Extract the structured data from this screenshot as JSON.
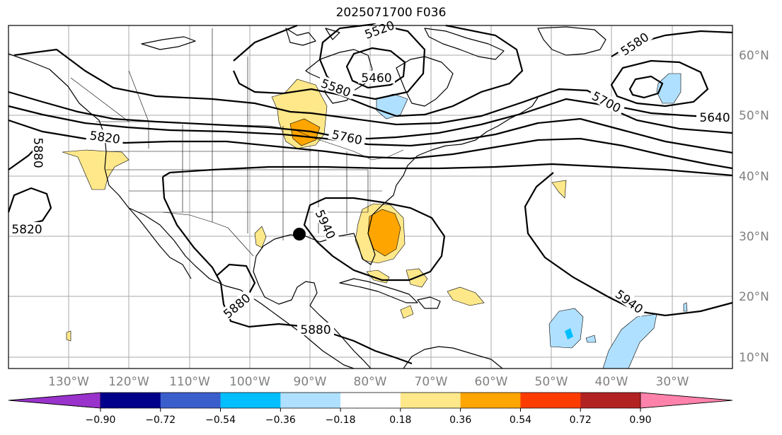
{
  "title": "2025071700 F036",
  "lon_labels": [
    "130°W",
    "120°W",
    "110°W",
    "100°W",
    "90°W",
    "80°W",
    "70°W",
    "60°W",
    "50°W",
    "40°W",
    "30°W"
  ],
  "lat_labels": [
    "60°N",
    "50°N",
    "40°N",
    "30°N",
    "20°N",
    "10°N"
  ],
  "contour_labels": [
    "5520",
    "5460",
    "5580",
    "5580",
    "5700",
    "5640",
    "5760",
    "5820",
    "5880",
    "5820",
    "5940",
    "5880",
    "5880",
    "5940"
  ],
  "colorbar": {
    "ticks": [
      "−0.90",
      "−0.72",
      "−0.54",
      "−0.36",
      "−0.18",
      "0.18",
      "0.36",
      "0.54",
      "0.72",
      "0.90"
    ],
    "colors": [
      "#9933cc",
      "#00008b",
      "#3a5fcd",
      "#00bfff",
      "#b0e0ff",
      "#ffffff",
      "#ffe88a",
      "#ffa500",
      "#ff3c00",
      "#b22222",
      "#ff82ab"
    ]
  }
}
